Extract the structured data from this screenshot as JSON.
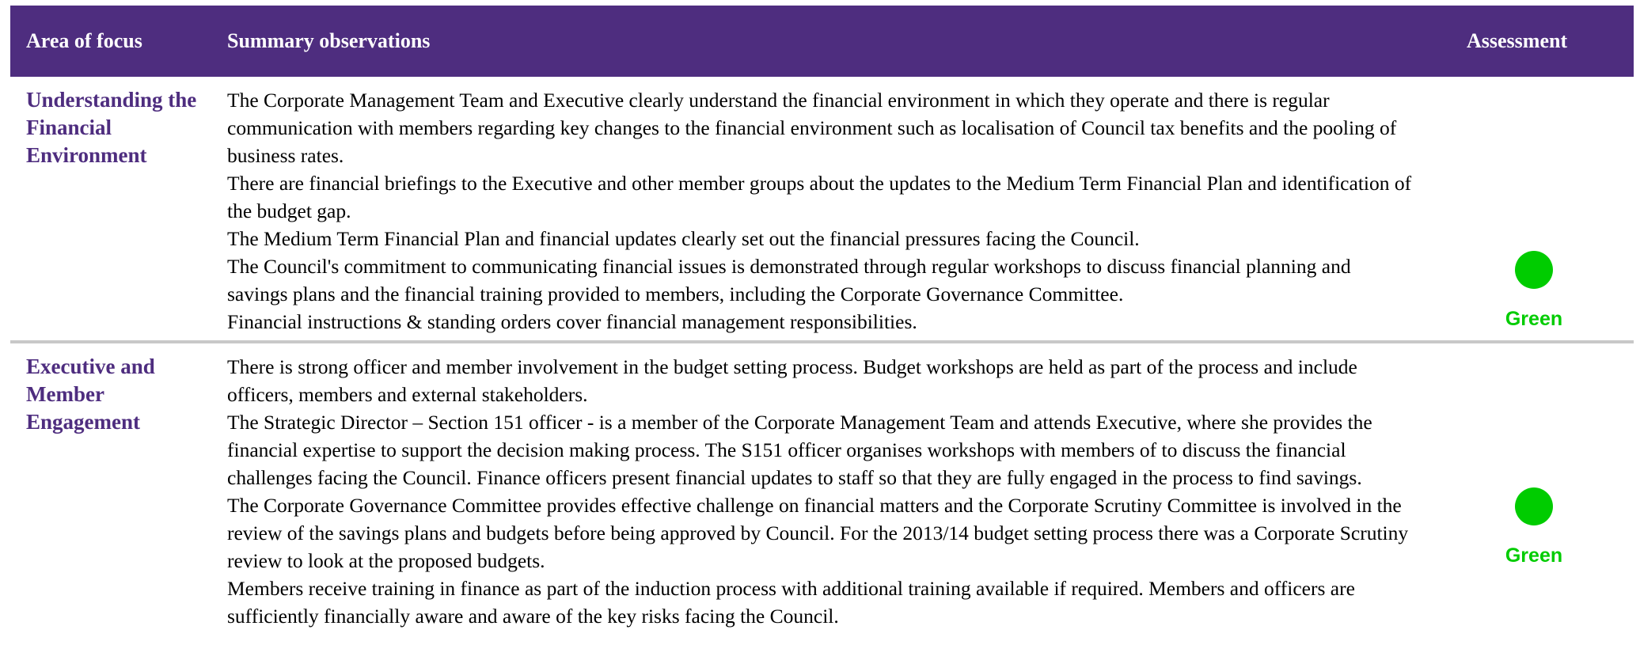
{
  "header": {
    "columns": [
      "Area of focus",
      "Summary observations",
      "Assessment"
    ]
  },
  "rows": [
    {
      "area": "Understanding the Financial Environment",
      "observations": [
        "The Corporate Management Team and Executive clearly understand the financial environment in which they operate and there is regular communication with members regarding key changes to the financial environment such as localisation of Council tax benefits and the pooling of business rates.",
        "There are financial briefings to the Executive and other member groups about the updates to the Medium Term Financial Plan and identification of the budget gap.",
        "The Medium Term Financial Plan and financial updates clearly set out the financial pressures facing the Council.",
        "The Council's commitment to communicating financial issues is demonstrated through regular workshops to discuss financial planning and savings plans and the financial training provided to members, including the Corporate Governance Committee.",
        "Financial instructions & standing orders cover financial management responsibilities."
      ],
      "assessment": "Green"
    },
    {
      "area": "Executive and Member Engagement",
      "observations": [
        "There is strong officer and member involvement in the budget setting process. Budget workshops are held as part of the process and include officers, members and external stakeholders.",
        "The Strategic Director – Section 151 officer - is a member of the Corporate Management Team and attends Executive, where she provides the financial expertise to support the decision making process.  The S151 officer organises workshops with members of to discuss the financial challenges facing the Council.  Finance officers present financial updates to staff so that they are fully engaged in the process to find savings.",
        "The Corporate Governance Committee provides effective challenge on financial matters and the Corporate Scrutiny Committee is involved in the review of the savings plans and budgets before being approved by Council.  For the 2013/14 budget setting process there was a Corporate Scrutiny review to look at the proposed budgets.",
        "Members receive training in finance as part of the induction process with additional training available if required. Members and officers are sufficiently financially aware and aware of the key risks facing the Council."
      ],
      "assessment": "Green"
    }
  ]
}
